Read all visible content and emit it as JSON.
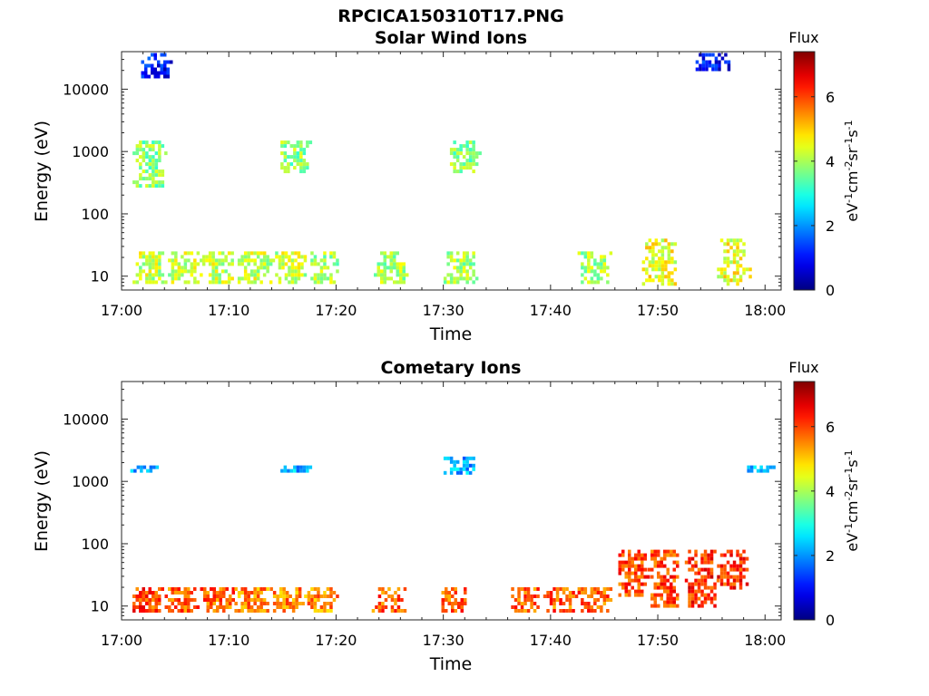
{
  "figure": {
    "title": "RPCICA150310T17.PNG"
  },
  "colorbar": {
    "label": "Flux",
    "unit_parts": [
      "eV",
      "-1",
      "cm",
      "-2",
      "sr",
      "-1",
      "s",
      "-1"
    ],
    "ticks": [
      "0",
      "2",
      "4",
      "6"
    ],
    "range": [
      0,
      7.4
    ],
    "colormap": "jet"
  },
  "chart_data": [
    {
      "type": "heatmap",
      "title": "Solar Wind Ions",
      "xlabel": "Time",
      "ylabel": "Energy (eV)",
      "x_ticks": [
        "17:00",
        "17:10",
        "17:20",
        "17:30",
        "17:40",
        "17:50",
        "18:00"
      ],
      "x_range": [
        "17:00",
        "18:01:30"
      ],
      "y_scale": "log",
      "y_ticks": [
        "10",
        "100",
        "1000",
        "10000"
      ],
      "y_range": [
        6,
        40000
      ],
      "grid": false,
      "z_label": "Flux",
      "features": [
        {
          "time_min": 2.5,
          "energy_eV": [
            8,
            25
          ],
          "flux": 4.2
        },
        {
          "time_min": 5.8,
          "energy_eV": [
            8,
            25
          ],
          "flux": 4.2
        },
        {
          "time_min": 9.0,
          "energy_eV": [
            8,
            25
          ],
          "flux": 4.2
        },
        {
          "time_min": 12.3,
          "energy_eV": [
            8,
            25
          ],
          "flux": 4.2
        },
        {
          "time_min": 15.5,
          "energy_eV": [
            8,
            25
          ],
          "flux": 4.2
        },
        {
          "time_min": 18.8,
          "energy_eV": [
            8,
            25
          ],
          "flux": 4.0
        },
        {
          "time_min": 25.0,
          "energy_eV": [
            8,
            25
          ],
          "flux": 4.0
        },
        {
          "time_min": 31.5,
          "energy_eV": [
            8,
            25
          ],
          "flux": 4.0
        },
        {
          "time_min": 44.0,
          "energy_eV": [
            8,
            25
          ],
          "flux": 4.0
        },
        {
          "time_min": 50.0,
          "energy_eV": [
            8,
            40
          ],
          "flux": 4.5
        },
        {
          "time_min": 57.0,
          "energy_eV": [
            8,
            40
          ],
          "flux": 4.5
        },
        {
          "time_min": 2.5,
          "energy_eV": [
            300,
            1500
          ],
          "flux": 3.8
        },
        {
          "time_min": 16.0,
          "energy_eV": [
            500,
            1500
          ],
          "flux": 3.8
        },
        {
          "time_min": 31.8,
          "energy_eV": [
            500,
            1500
          ],
          "flux": 3.8
        },
        {
          "time_min": 3.0,
          "energy_eV": [
            15000,
            38000
          ],
          "flux": 1.0
        },
        {
          "time_min": 55.0,
          "energy_eV": [
            20000,
            38000
          ],
          "flux": 1.0
        }
      ]
    },
    {
      "type": "heatmap",
      "title": "Cometary Ions",
      "xlabel": "Time",
      "ylabel": "Energy (eV)",
      "x_ticks": [
        "17:00",
        "17:10",
        "17:20",
        "17:30",
        "17:40",
        "17:50",
        "18:00"
      ],
      "x_range": [
        "17:00",
        "18:01:30"
      ],
      "y_scale": "log",
      "y_ticks": [
        "10",
        "100",
        "1000",
        "10000"
      ],
      "y_range": [
        6,
        40000
      ],
      "grid": false,
      "z_label": "Flux",
      "features": [
        {
          "time_min": 2.2,
          "energy_eV": [
            8,
            20
          ],
          "flux": 6.0
        },
        {
          "time_min": 5.5,
          "energy_eV": [
            8,
            20
          ],
          "flux": 5.8
        },
        {
          "time_min": 8.8,
          "energy_eV": [
            8,
            20
          ],
          "flux": 5.8
        },
        {
          "time_min": 12.0,
          "energy_eV": [
            8,
            20
          ],
          "flux": 5.5
        },
        {
          "time_min": 15.3,
          "energy_eV": [
            8,
            20
          ],
          "flux": 5.5
        },
        {
          "time_min": 18.5,
          "energy_eV": [
            8,
            20
          ],
          "flux": 5.5
        },
        {
          "time_min": 24.8,
          "energy_eV": [
            8,
            20
          ],
          "flux": 5.8
        },
        {
          "time_min": 31.0,
          "energy_eV": [
            8,
            20
          ],
          "flux": 5.8
        },
        {
          "time_min": 37.5,
          "energy_eV": [
            8,
            20
          ],
          "flux": 5.8
        },
        {
          "time_min": 40.8,
          "energy_eV": [
            8,
            20
          ],
          "flux": 5.8
        },
        {
          "time_min": 44.0,
          "energy_eV": [
            8,
            20
          ],
          "flux": 5.8
        },
        {
          "time_min": 47.5,
          "energy_eV": [
            15,
            80
          ],
          "flux": 6.0
        },
        {
          "time_min": 50.5,
          "energy_eV": [
            10,
            80
          ],
          "flux": 6.0
        },
        {
          "time_min": 54.0,
          "energy_eV": [
            10,
            80
          ],
          "flux": 6.2
        },
        {
          "time_min": 57.0,
          "energy_eV": [
            20,
            80
          ],
          "flux": 6.2
        },
        {
          "time_min": 2.0,
          "energy_eV": [
            1400,
            1800
          ],
          "flux": 2.2
        },
        {
          "time_min": 16.0,
          "energy_eV": [
            1400,
            1800
          ],
          "flux": 2.2
        },
        {
          "time_min": 31.5,
          "energy_eV": [
            1400,
            2500
          ],
          "flux": 2.2
        },
        {
          "time_min": 59.5,
          "energy_eV": [
            1400,
            1800
          ],
          "flux": 2.2
        }
      ]
    }
  ]
}
